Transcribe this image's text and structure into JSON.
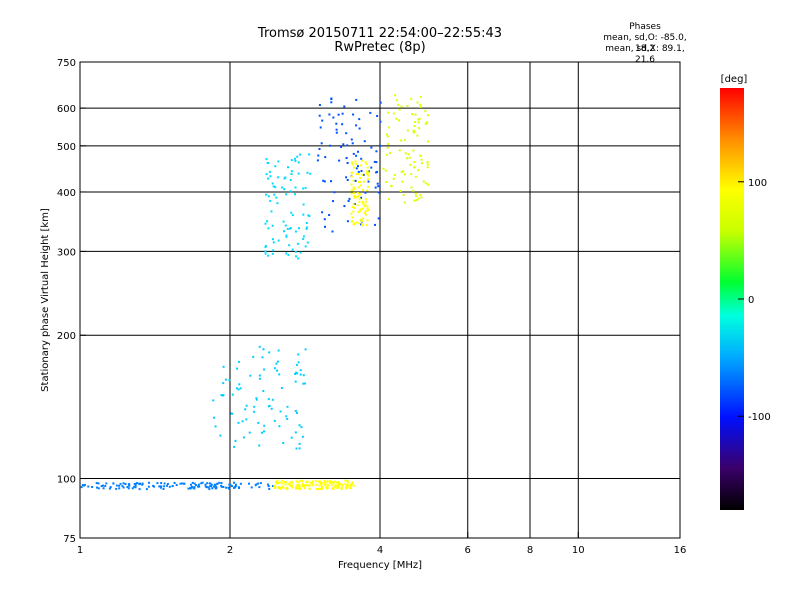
{
  "chart_data": {
    "type": "scatter",
    "title": "Tromsø 20150711 22:54:00–22:55:43",
    "subtitle": "RwPretec (8p)",
    "xlabel": "Frequency [MHz]",
    "ylabel": "Stationary phase Virtual Height [km]",
    "xscale": "log",
    "yscale": "log",
    "xlim": [
      1,
      16
    ],
    "ylim": [
      75,
      750
    ],
    "xticks": [
      1,
      2,
      4,
      6,
      8,
      10,
      16
    ],
    "xtick_labels": [
      "1",
      "2",
      "4",
      "6",
      "8",
      "10",
      "16"
    ],
    "yticks": [
      75,
      100,
      200,
      300,
      400,
      500,
      600,
      750
    ],
    "ytick_labels": [
      "75",
      "100",
      "200",
      "300",
      "400",
      "500",
      "600",
      "750"
    ],
    "x_gridlines": [
      2,
      4,
      6,
      8,
      10
    ],
    "y_gridlines": [
      100,
      200,
      300,
      400,
      500,
      600
    ],
    "grid": true,
    "colorbar": {
      "label": "[deg]",
      "ticks": [
        100,
        0,
        -100
      ],
      "tick_labels": [
        "100",
        "0",
        "-100"
      ],
      "range": [
        -180,
        180
      ],
      "colormap": "rainbow"
    },
    "phase_stats": {
      "header": "Phases",
      "line_O": "mean, sd,O: -85.0, 18.2",
      "line_X": "mean, sd,X: 89.1, 21.6"
    },
    "clusters": [
      {
        "x_range": [
          1.0,
          2.45
        ],
        "y_range": [
          95,
          98
        ],
        "phase": -100,
        "kind": "e-layer trace"
      },
      {
        "x_range": [
          2.45,
          3.55
        ],
        "y_range": [
          95,
          99
        ],
        "phase": 100,
        "kind": "e-layer trace"
      },
      {
        "x_range": [
          1.85,
          2.85
        ],
        "y_range": [
          115,
          190
        ],
        "phase": -75,
        "kind": "es spread"
      },
      {
        "x_range": [
          2.35,
          2.9
        ],
        "y_range": [
          290,
          490
        ],
        "phase": -70,
        "kind": "f-layer O"
      },
      {
        "x_range": [
          3.0,
          4.05
        ],
        "y_range": [
          330,
          640
        ],
        "phase": -115,
        "kind": "f-layer O"
      },
      {
        "x_range": [
          3.5,
          3.8
        ],
        "y_range": [
          340,
          470
        ],
        "phase": 100,
        "kind": "f-layer X"
      },
      {
        "x_range": [
          4.05,
          5.0
        ],
        "y_range": [
          380,
          640
        ],
        "phase": 90,
        "kind": "f-layer X"
      }
    ]
  },
  "colors": {
    "background": "#ffffff",
    "axes": "#000000",
    "grid": "#000000"
  }
}
